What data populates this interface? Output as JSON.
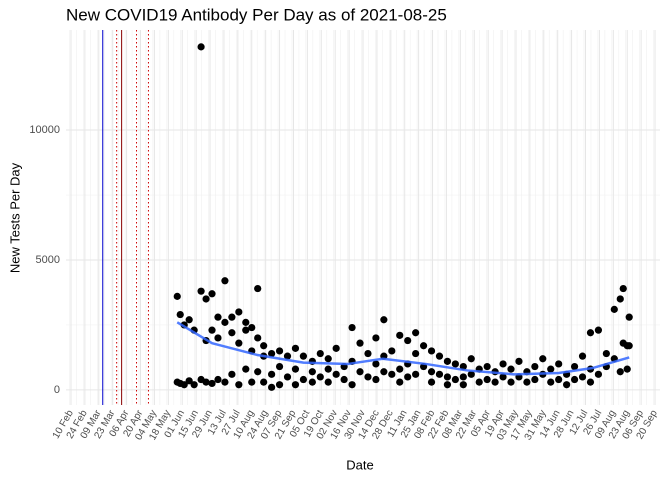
{
  "chart_data": {
    "type": "scatter",
    "title": "New COVID19 Antibody Per Day as of 2021-08-25",
    "x_label": "Date",
    "y_label": "New Tests Per Day",
    "color": "#000000",
    "grid": true,
    "ylim": [
      -580,
      13850
    ],
    "yticks": [
      0,
      5000,
      10000
    ],
    "xlim": [
      "2020-02-05",
      "2021-09-25"
    ],
    "xticks": [
      {
        "value": "2020-02-10",
        "label": "10 Feb"
      },
      {
        "value": "2020-02-24",
        "label": "24 Feb"
      },
      {
        "value": "2020-03-09",
        "label": "09 Mar"
      },
      {
        "value": "2020-03-23",
        "label": "23 Mar"
      },
      {
        "value": "2020-04-06",
        "label": "06 Apr"
      },
      {
        "value": "2020-04-20",
        "label": "20 Apr"
      },
      {
        "value": "2020-05-04",
        "label": "04 May"
      },
      {
        "value": "2020-05-18",
        "label": "18 May"
      },
      {
        "value": "2020-06-01",
        "label": "01 Jun"
      },
      {
        "value": "2020-06-15",
        "label": "15 Jun"
      },
      {
        "value": "2020-06-29",
        "label": "29 Jun"
      },
      {
        "value": "2020-07-13",
        "label": "13 Jul"
      },
      {
        "value": "2020-07-27",
        "label": "27 Jul"
      },
      {
        "value": "2020-08-10",
        "label": "10 Aug"
      },
      {
        "value": "2020-08-24",
        "label": "24 Aug"
      },
      {
        "value": "2020-09-07",
        "label": "07 Sep"
      },
      {
        "value": "2020-09-21",
        "label": "21 Sep"
      },
      {
        "value": "2020-10-05",
        "label": "05 Oct"
      },
      {
        "value": "2020-10-19",
        "label": "19 Oct"
      },
      {
        "value": "2020-11-02",
        "label": "02 Nov"
      },
      {
        "value": "2020-11-16",
        "label": "16 Nov"
      },
      {
        "value": "2020-11-30",
        "label": "30 Nov"
      },
      {
        "value": "2020-12-14",
        "label": "14 Dec"
      },
      {
        "value": "2020-12-28",
        "label": "28 Dec"
      },
      {
        "value": "2021-01-11",
        "label": "11 Jan"
      },
      {
        "value": "2021-01-25",
        "label": "25 Jan"
      },
      {
        "value": "2021-02-08",
        "label": "08 Feb"
      },
      {
        "value": "2021-02-22",
        "label": "22 Feb"
      },
      {
        "value": "2021-03-08",
        "label": "08 Mar"
      },
      {
        "value": "2021-03-22",
        "label": "22 Mar"
      },
      {
        "value": "2021-04-05",
        "label": "05 Apr"
      },
      {
        "value": "2021-04-19",
        "label": "19 Apr"
      },
      {
        "value": "2021-05-03",
        "label": "03 May"
      },
      {
        "value": "2021-05-17",
        "label": "17 May"
      },
      {
        "value": "2021-05-31",
        "label": "31 May"
      },
      {
        "value": "2021-06-14",
        "label": "14 Jun"
      },
      {
        "value": "2021-06-28",
        "label": "28 Jun"
      },
      {
        "value": "2021-07-12",
        "label": "12 Jul"
      },
      {
        "value": "2021-07-26",
        "label": "26 Jul"
      },
      {
        "value": "2021-08-09",
        "label": "09 Aug"
      },
      {
        "value": "2021-08-23",
        "label": "23 Aug"
      },
      {
        "value": "2021-09-06",
        "label": "06 Sep"
      },
      {
        "value": "2021-09-20",
        "label": "20 Sep"
      }
    ],
    "vlines": [
      {
        "x": "2020-03-13",
        "color": "#0000cc",
        "dashed": false
      },
      {
        "x": "2020-03-27",
        "color": "#cc0000",
        "dashed": true
      },
      {
        "x": "2020-04-01",
        "color": "#880000",
        "dashed": false
      },
      {
        "x": "2020-04-16",
        "color": "#cc0000",
        "dashed": true
      },
      {
        "x": "2020-04-28",
        "color": "#cc0000",
        "dashed": true
      }
    ],
    "x": [
      "2020-05-27",
      "2020-05-27",
      "2020-05-30",
      "2020-05-30",
      "2020-06-03",
      "2020-06-03",
      "2020-06-08",
      "2020-06-08",
      "2020-06-13",
      "2020-06-13",
      "2020-06-20",
      "2020-06-20",
      "2020-06-20",
      "2020-06-25",
      "2020-06-25",
      "2020-06-25",
      "2020-07-01",
      "2020-07-01",
      "2020-07-01",
      "2020-07-07",
      "2020-07-07",
      "2020-07-07",
      "2020-07-14",
      "2020-07-14",
      "2020-07-14",
      "2020-07-21",
      "2020-07-21",
      "2020-07-21",
      "2020-07-28",
      "2020-07-28",
      "2020-07-28",
      "2020-08-04",
      "2020-08-04",
      "2020-08-04",
      "2020-08-10",
      "2020-08-10",
      "2020-08-10",
      "2020-08-16",
      "2020-08-16",
      "2020-08-16",
      "2020-08-22",
      "2020-08-22",
      "2020-08-22",
      "2020-08-30",
      "2020-08-30",
      "2020-08-30",
      "2020-09-07",
      "2020-09-07",
      "2020-09-07",
      "2020-09-15",
      "2020-09-15",
      "2020-09-23",
      "2020-09-23",
      "2020-09-23",
      "2020-10-01",
      "2020-10-01",
      "2020-10-10",
      "2020-10-10",
      "2020-10-10",
      "2020-10-18",
      "2020-10-18",
      "2020-10-26",
      "2020-10-26",
      "2020-10-26",
      "2020-11-03",
      "2020-11-03",
      "2020-11-11",
      "2020-11-11",
      "2020-11-19",
      "2020-11-19",
      "2020-11-19",
      "2020-11-27",
      "2020-11-27",
      "2020-12-05",
      "2020-12-05",
      "2020-12-13",
      "2020-12-13",
      "2020-12-13",
      "2020-12-21",
      "2020-12-21",
      "2020-12-21",
      "2020-12-29",
      "2020-12-29",
      "2021-01-06",
      "2021-01-06",
      "2021-01-06",
      "2021-01-14",
      "2021-01-14",
      "2021-01-14",
      "2021-01-22",
      "2021-01-22",
      "2021-01-22",
      "2021-01-30",
      "2021-01-30",
      "2021-02-07",
      "2021-02-07",
      "2021-02-07",
      "2021-02-15",
      "2021-02-15",
      "2021-02-23",
      "2021-02-23",
      "2021-02-23",
      "2021-03-03",
      "2021-03-03",
      "2021-03-11",
      "2021-03-11",
      "2021-03-11",
      "2021-03-19",
      "2021-03-19",
      "2021-03-27",
      "2021-03-27",
      "2021-04-04",
      "2021-04-04",
      "2021-04-12",
      "2021-04-12",
      "2021-04-20",
      "2021-04-20",
      "2021-04-28",
      "2021-04-28",
      "2021-05-06",
      "2021-05-06",
      "2021-05-14",
      "2021-05-14",
      "2021-05-22",
      "2021-05-22",
      "2021-05-30",
      "2021-05-30",
      "2021-06-07",
      "2021-06-07",
      "2021-06-15",
      "2021-06-15",
      "2021-06-23",
      "2021-06-23",
      "2021-07-01",
      "2021-07-01",
      "2021-07-09",
      "2021-07-09",
      "2021-07-17",
      "2021-07-17",
      "2021-07-17",
      "2021-07-25",
      "2021-07-25",
      "2021-08-02",
      "2021-08-02",
      "2021-08-10",
      "2021-08-10",
      "2021-08-16",
      "2021-08-16",
      "2021-08-19",
      "2021-08-19",
      "2021-08-23",
      "2021-08-23",
      "2021-08-25",
      "2021-08-25"
    ],
    "values": [
      3600,
      300,
      2900,
      250,
      2500,
      200,
      2700,
      350,
      2300,
      200,
      13200,
      3800,
      400,
      3500,
      1900,
      300,
      3700,
      2300,
      250,
      2800,
      2000,
      400,
      4200,
      2600,
      300,
      2800,
      2200,
      600,
      3000,
      1800,
      200,
      2600,
      2300,
      800,
      2400,
      1500,
      300,
      3900,
      2000,
      700,
      1700,
      1300,
      300,
      1400,
      600,
      100,
      1500,
      900,
      200,
      1300,
      500,
      1600,
      800,
      200,
      1300,
      400,
      1100,
      700,
      300,
      1400,
      500,
      1200,
      800,
      300,
      1600,
      600,
      900,
      400,
      2400,
      1100,
      200,
      1800,
      700,
      1400,
      500,
      2000,
      1000,
      400,
      2700,
      1300,
      700,
      1500,
      600,
      2100,
      800,
      300,
      1900,
      1000,
      500,
      2200,
      1400,
      600,
      1700,
      900,
      1500,
      700,
      300,
      1300,
      600,
      1100,
      500,
      200,
      1000,
      400,
      900,
      500,
      200,
      1200,
      600,
      800,
      300,
      900,
      400,
      700,
      300,
      1000,
      500,
      800,
      300,
      1100,
      500,
      700,
      300,
      900,
      400,
      1200,
      600,
      800,
      300,
      1000,
      400,
      600,
      200,
      900,
      400,
      1300,
      500,
      2200,
      800,
      300,
      2300,
      600,
      1400,
      900,
      3100,
      1200,
      3500,
      700,
      3900,
      1800,
      1700,
      800,
      2800,
      1700
    ],
    "trend": {
      "color": "#3366ff",
      "x": [
        "2020-05-27",
        "2020-07-01",
        "2020-08-15",
        "2020-10-01",
        "2020-11-15",
        "2020-12-20",
        "2021-02-01",
        "2021-03-15",
        "2021-05-01",
        "2021-06-15",
        "2021-07-20",
        "2021-08-25"
      ],
      "values": [
        2600,
        1800,
        1350,
        1050,
        1000,
        1200,
        1000,
        750,
        600,
        650,
        850,
        1250
      ]
    }
  }
}
